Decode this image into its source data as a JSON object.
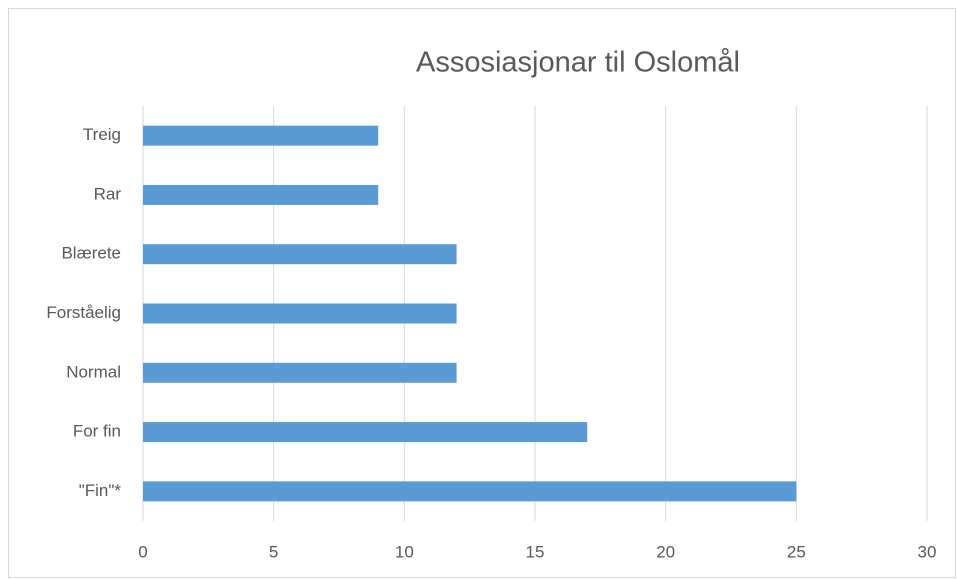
{
  "chart_data": {
    "type": "bar",
    "orientation": "horizontal",
    "title": "Assosiasjonar til Oslomål",
    "categories": [
      "Treig",
      "Rar",
      "Blærete",
      "Forståelig",
      "Normal",
      "For fin",
      "\"Fin\"*"
    ],
    "values": [
      9,
      9,
      12,
      12,
      12,
      17,
      25
    ],
    "color": "#5b9bd5",
    "xlim": [
      0,
      30
    ],
    "xticks": [
      0,
      5,
      10,
      15,
      20,
      25,
      30
    ],
    "grid": true
  }
}
